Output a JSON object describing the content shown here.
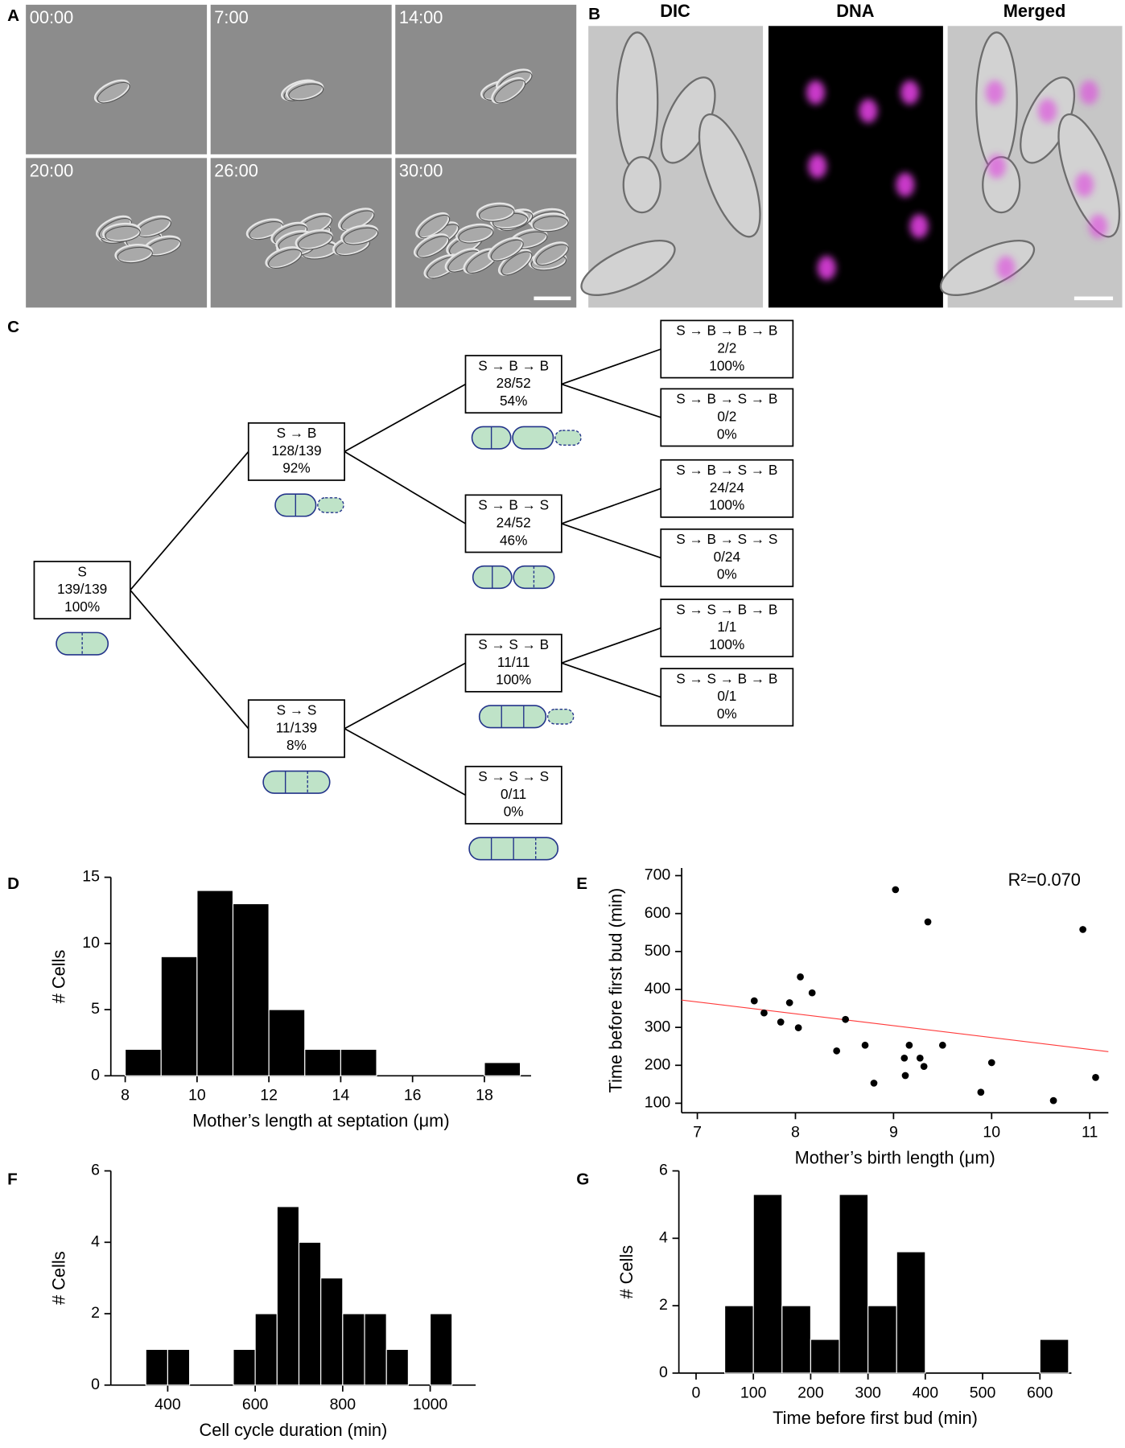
{
  "panel_labels": [
    "A",
    "B",
    "C",
    "D",
    "E",
    "F",
    "G"
  ],
  "timelapse": [
    "00:00",
    "7:00",
    "14:00",
    "20:00",
    "26:00",
    "30:00"
  ],
  "channels": [
    "DIC",
    "DNA",
    "Merged"
  ],
  "tree": {
    "nodes": [
      {
        "lines": [
          "S",
          "139/139",
          "100%"
        ]
      },
      {
        "lines": [
          "S → B",
          "128/139",
          "92%"
        ]
      },
      {
        "lines": [
          "S → S",
          "11/139",
          "8%"
        ]
      },
      {
        "lines": [
          "S → B → B",
          "28/52",
          "54%"
        ]
      },
      {
        "lines": [
          "S → B → S",
          "24/52",
          "46%"
        ]
      },
      {
        "lines": [
          "S → S → B",
          "11/11",
          "100%"
        ]
      },
      {
        "lines": [
          "S → S → S",
          "0/11",
          "0%"
        ]
      },
      {
        "lines": [
          "S → B → B → B",
          "2/2",
          "100%"
        ]
      },
      {
        "lines": [
          "S → B → S → B",
          "0/2",
          "0%"
        ]
      },
      {
        "lines": [
          "S → B → S → B",
          "24/24",
          "100%"
        ]
      },
      {
        "lines": [
          "S → B → S → S",
          "0/24",
          "0%"
        ]
      },
      {
        "lines": [
          "S → S → B → B",
          "1/1",
          "100%"
        ]
      },
      {
        "lines": [
          "S → S → B → B",
          "0/1",
          "0%"
        ]
      }
    ]
  },
  "chart_data": [
    {
      "type": "histogram",
      "xlabel": "Mother’s length at septation (μm)",
      "ylabel": "# Cells",
      "bins": [
        8,
        9,
        10,
        11,
        12,
        13,
        14,
        15,
        16,
        17,
        18,
        19
      ],
      "values": [
        2,
        9,
        14,
        13,
        5,
        2,
        2,
        0,
        0,
        0,
        1
      ],
      "color": "#000000",
      "xlim": [
        7.6,
        19.3
      ],
      "xticks": [
        8,
        10,
        12,
        14,
        16,
        18
      ],
      "ylim": [
        0,
        15
      ],
      "yticks": [
        0,
        5,
        10,
        15
      ]
    },
    {
      "type": "scatter",
      "xlabel": "Mother’s birth length (μm)",
      "ylabel": "Time before first bud (min)",
      "annotation": "R²=0.070",
      "color": "#000000",
      "x": [
        7.58,
        7.68,
        7.85,
        7.94,
        8.03,
        8.05,
        8.17,
        8.51,
        8.42,
        8.71,
        8.8,
        9.02,
        9.35,
        9.11,
        9.12,
        9.16,
        9.27,
        9.31,
        9.5,
        10.0,
        9.89,
        10.63,
        10.93,
        11.06
      ],
      "values": [
        370,
        338,
        314,
        365,
        299,
        433,
        391,
        321,
        238,
        253,
        153,
        663,
        578,
        219,
        173,
        253,
        219,
        197,
        253,
        207,
        129,
        107,
        558,
        168
      ],
      "trendline": {
        "x": [
          6.84,
          11.19
        ],
        "y": [
          372,
          236
        ],
        "color": "#ff3b3b"
      },
      "xlim": [
        6.84,
        11.19
      ],
      "xticks": [
        7,
        8,
        9,
        10,
        11
      ],
      "ylim": [
        75,
        720
      ],
      "yticks": [
        100,
        200,
        300,
        400,
        500,
        600,
        700
      ]
    },
    {
      "type": "histogram",
      "xlabel": "Cell cycle duration (min)",
      "ylabel": "# Cells",
      "bins": [
        350,
        400,
        450,
        500,
        550,
        600,
        650,
        700,
        750,
        800,
        850,
        900,
        950,
        1000,
        1050
      ],
      "values": [
        1,
        1,
        0,
        0,
        1,
        2,
        5,
        4,
        3,
        2,
        2,
        1,
        0,
        2
      ],
      "color": "#000000",
      "xlim": [
        270,
        1104
      ],
      "xticks": [
        400,
        600,
        800,
        1000
      ],
      "ylim": [
        0,
        6
      ],
      "yticks": [
        0,
        2,
        4,
        6
      ]
    },
    {
      "type": "histogram",
      "xlabel": "Time before first bud (min)",
      "ylabel": "# Cells",
      "bins": [
        50,
        100,
        150,
        200,
        250,
        300,
        350,
        400,
        450,
        500,
        550,
        600,
        650
      ],
      "values": [
        2,
        5.3,
        2,
        1,
        5.3,
        2,
        3.6,
        0,
        0,
        0,
        0,
        1
      ],
      "color": "#000000",
      "xlim": [
        -30,
        655
      ],
      "xticks": [
        0,
        100,
        200,
        300,
        400,
        500,
        600
      ],
      "ylim": [
        0,
        6
      ],
      "yticks": [
        0,
        2,
        4,
        6
      ]
    }
  ]
}
